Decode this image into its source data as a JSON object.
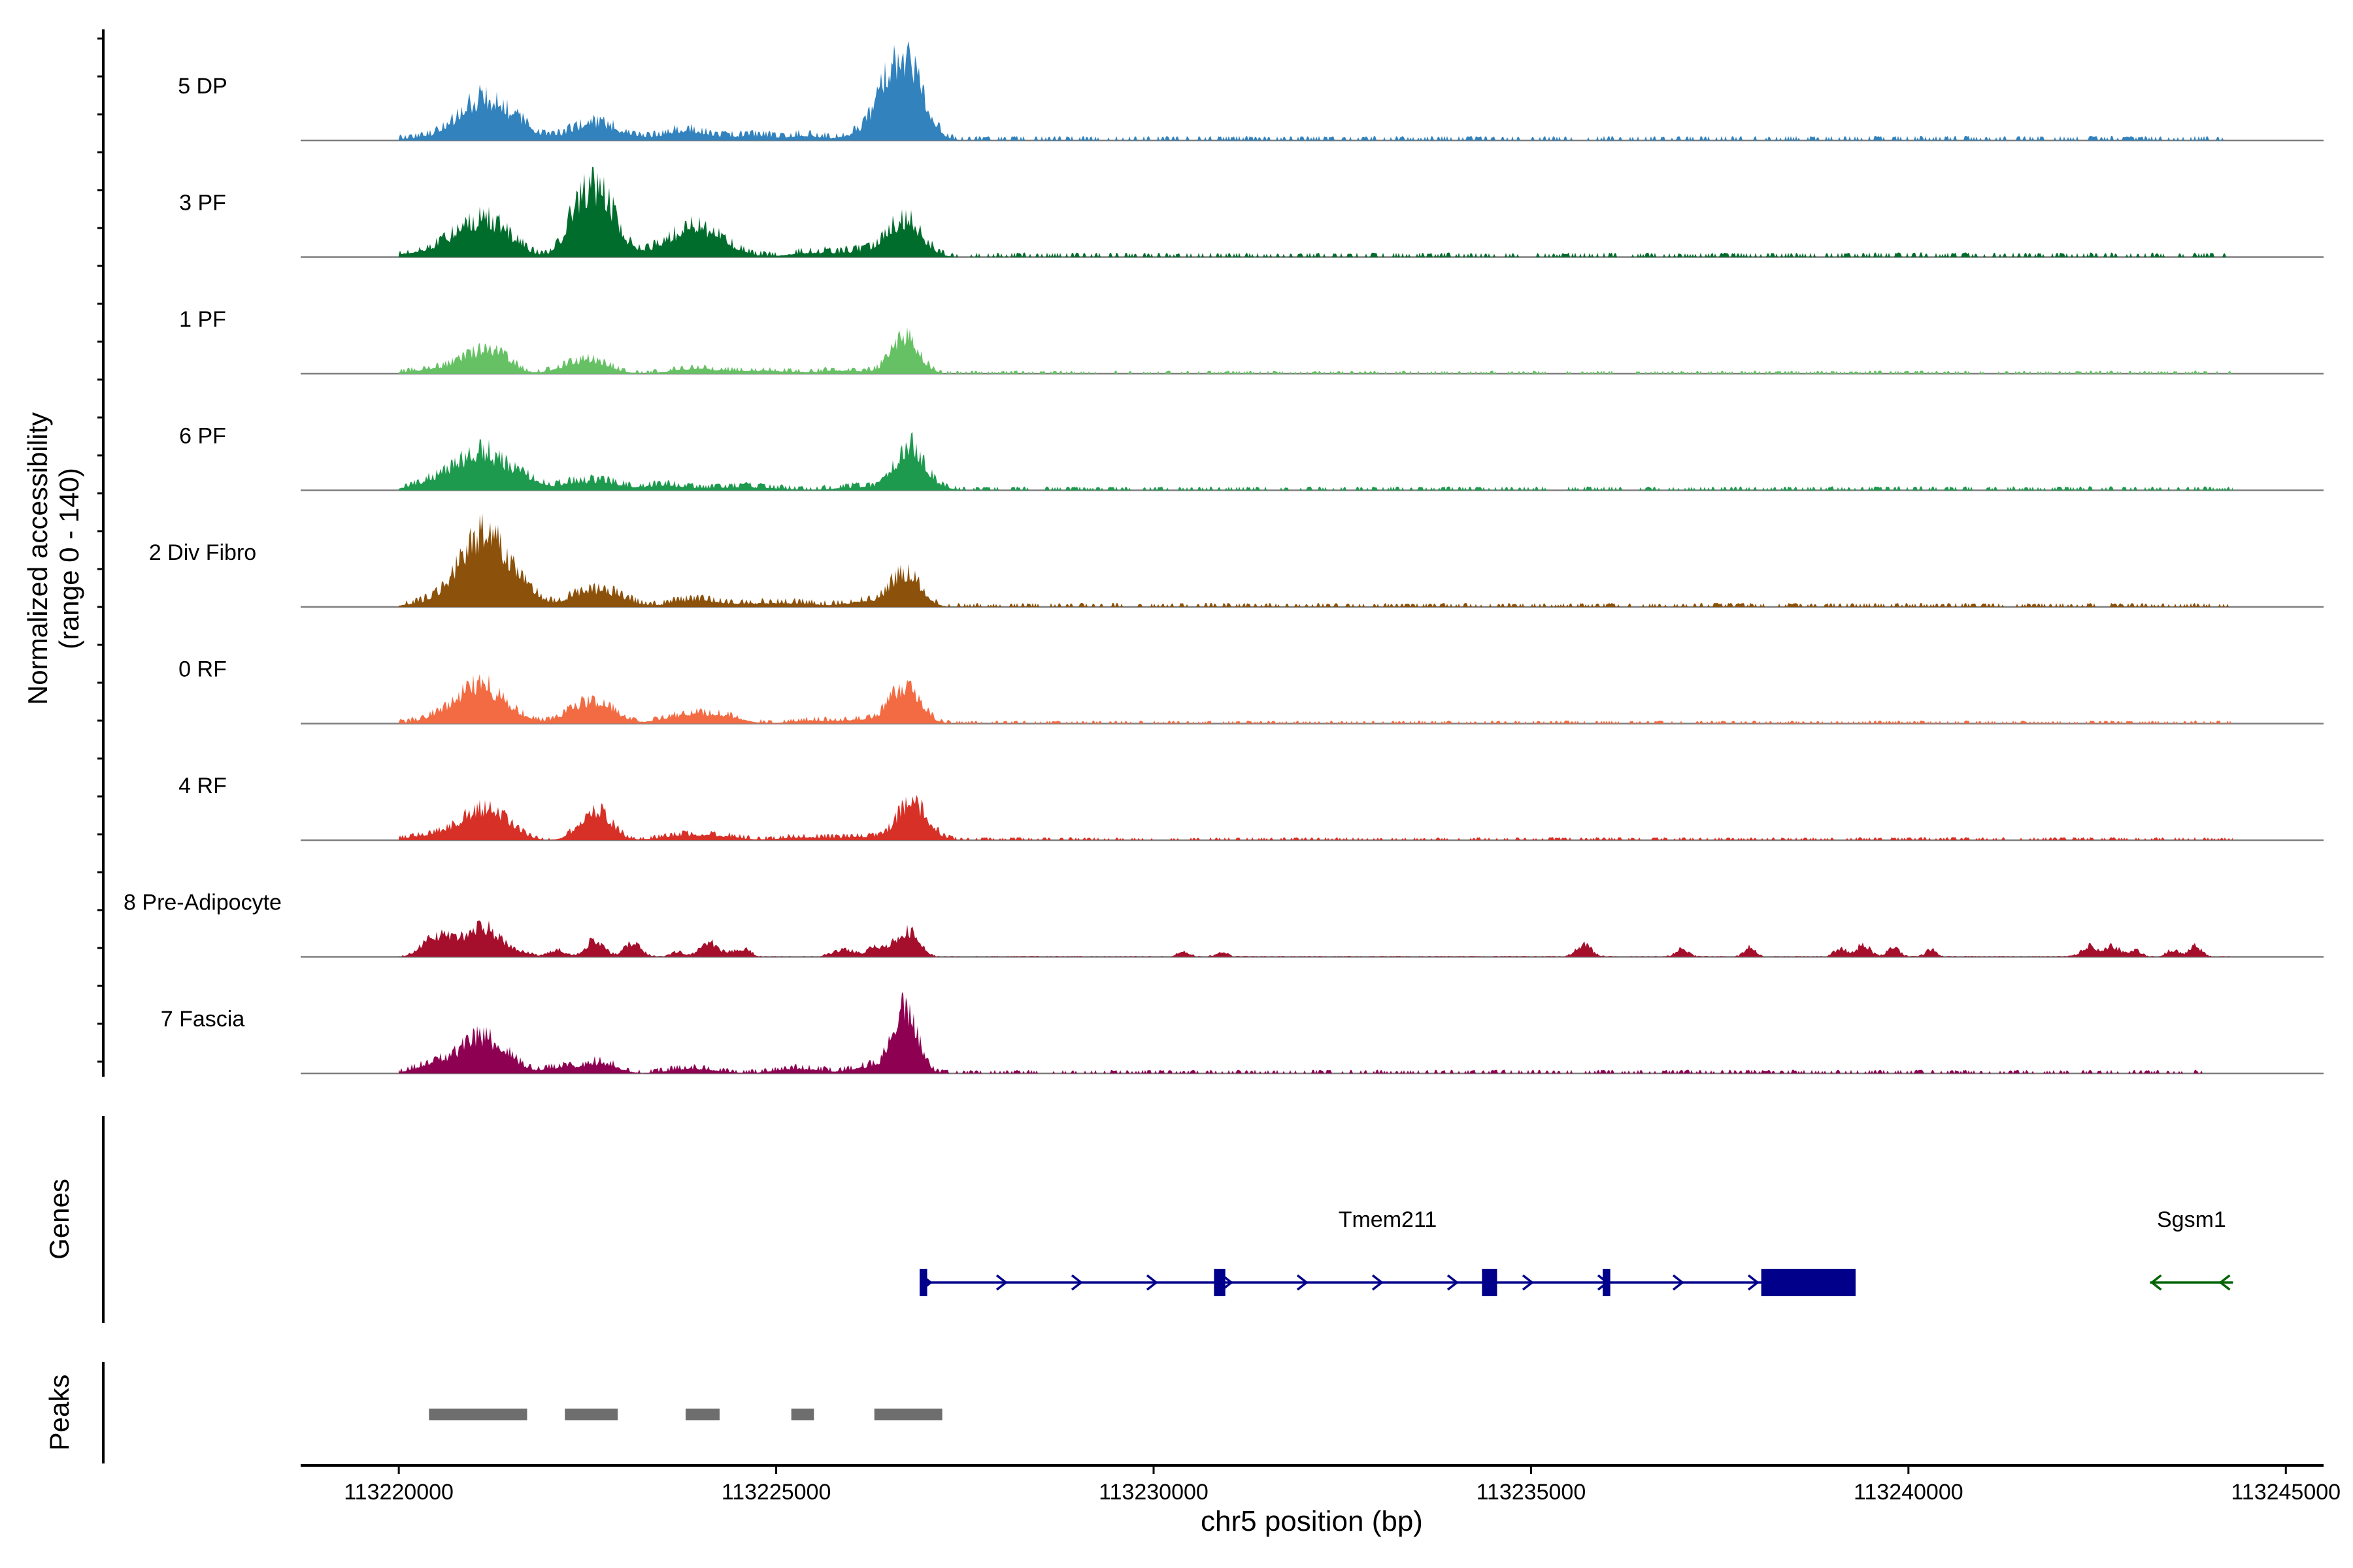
{
  "chart_data": {
    "type": "area",
    "title": "",
    "ylabel_line1": "Normalized accessibility",
    "ylabel_line2": "(range 0 - 140)",
    "xlabel": "chr5 position (bp)",
    "xlim": [
      113218700,
      113245500
    ],
    "x_ticks": [
      113220000,
      113225000,
      113230000,
      113235000,
      113240000,
      113245000
    ],
    "x_tick_labels": [
      "113220000",
      "113225000",
      "113230000",
      "113235000",
      "113240000",
      "113245000"
    ],
    "ylim": [
      0,
      140
    ],
    "track_panels": [
      "Genes",
      "Peaks"
    ],
    "series": [
      {
        "name": "5 DP",
        "color": "#3182BD",
        "noise": 1.5,
        "extent": [
          113220000,
          113244200
        ],
        "peaks": [
          [
            113220500,
            2,
            420
          ],
          [
            113220900,
            8,
            260
          ],
          [
            113221100,
            13,
            220
          ],
          [
            113221400,
            10,
            240
          ],
          [
            113221650,
            4,
            200
          ],
          [
            113222600,
            10,
            320
          ],
          [
            113223800,
            6,
            280
          ],
          [
            113224700,
            3,
            300
          ],
          [
            113225400,
            3,
            200
          ],
          [
            113226100,
            4,
            200
          ],
          [
            113226700,
            50,
            230
          ],
          [
            113226400,
            8,
            150
          ]
        ]
      },
      {
        "name": "3 PF",
        "color": "#006D2C",
        "noise": 1.5,
        "extent": [
          113220000,
          113244300
        ],
        "peaks": [
          [
            113220500,
            3,
            500
          ],
          [
            113220800,
            8,
            250
          ],
          [
            113221100,
            12,
            220
          ],
          [
            113221400,
            10,
            240
          ],
          [
            113222400,
            26,
            180
          ],
          [
            113222700,
            30,
            190
          ],
          [
            113223400,
            4,
            500
          ],
          [
            113223900,
            14,
            260
          ],
          [
            113224300,
            5,
            250
          ],
          [
            113225500,
            3,
            300
          ],
          [
            113226100,
            3,
            200
          ],
          [
            113226700,
            22,
            220
          ]
        ]
      },
      {
        "name": "1 PF",
        "color": "#66C164",
        "noise": 1.0,
        "extent": [
          113220000,
          113244300
        ],
        "peaks": [
          [
            113220600,
            3,
            400
          ],
          [
            113221000,
            7,
            240
          ],
          [
            113221300,
            10,
            200
          ],
          [
            113222300,
            4,
            250
          ],
          [
            113222600,
            6,
            230
          ],
          [
            113223900,
            3,
            300
          ],
          [
            113224800,
            2,
            400
          ],
          [
            113225900,
            2,
            300
          ],
          [
            113226700,
            22,
            180
          ]
        ]
      },
      {
        "name": "6 PF",
        "color": "#1E9A4E",
        "noise": 1.3,
        "extent": [
          113220000,
          113244300
        ],
        "peaks": [
          [
            113220400,
            4,
            250
          ],
          [
            113220800,
            10,
            240
          ],
          [
            113221100,
            14,
            200
          ],
          [
            113221400,
            9,
            250
          ],
          [
            113221700,
            4,
            200
          ],
          [
            113222300,
            4,
            200
          ],
          [
            113222700,
            5,
            220
          ],
          [
            113223500,
            3,
            300
          ],
          [
            113224600,
            2,
            400
          ],
          [
            113226100,
            2,
            300
          ],
          [
            113226750,
            24,
            170
          ],
          [
            113227000,
            4,
            200
          ]
        ]
      },
      {
        "name": "2 Div Fibro",
        "color": "#8C510A",
        "noise": 1.3,
        "extent": [
          113220000,
          113244300
        ],
        "peaks": [
          [
            113220600,
            4,
            350
          ],
          [
            113220900,
            14,
            250
          ],
          [
            113221150,
            28,
            230
          ],
          [
            113221450,
            12,
            250
          ],
          [
            113221700,
            4,
            200
          ],
          [
            113222500,
            9,
            250
          ],
          [
            113222900,
            5,
            200
          ],
          [
            113223900,
            4,
            300
          ],
          [
            113224700,
            2,
            300
          ],
          [
            113225300,
            2,
            300
          ],
          [
            113226100,
            3,
            200
          ],
          [
            113226700,
            20,
            200
          ]
        ]
      },
      {
        "name": "0 RF",
        "color": "#F26B43",
        "noise": 1.0,
        "extent": [
          113220000,
          113244300
        ],
        "peaks": [
          [
            113220600,
            4,
            300
          ],
          [
            113220900,
            10,
            240
          ],
          [
            113221150,
            14,
            200
          ],
          [
            113221500,
            6,
            230
          ],
          [
            113222400,
            8,
            220
          ],
          [
            113222700,
            9,
            220
          ],
          [
            113223800,
            5,
            300
          ],
          [
            113224300,
            4,
            250
          ],
          [
            113225500,
            2,
            300
          ],
          [
            113226100,
            2,
            200
          ],
          [
            113226700,
            22,
            200
          ]
        ]
      },
      {
        "name": "4 RF",
        "color": "#D73027",
        "noise": 1.0,
        "extent": [
          113220000,
          113244300
        ],
        "peaks": [
          [
            113220500,
            3,
            350
          ],
          [
            113220900,
            7,
            250
          ],
          [
            113221100,
            10,
            180
          ],
          [
            113221400,
            10,
            200
          ],
          [
            113222600,
            18,
            200
          ],
          [
            113223800,
            3,
            300
          ],
          [
            113224300,
            2,
            250
          ],
          [
            113225400,
            2,
            300
          ],
          [
            113226100,
            2,
            200
          ],
          [
            113226800,
            22,
            200
          ]
        ]
      },
      {
        "name": "8 Pre-Adipocyte",
        "color": "#A50F2B",
        "noise": 0.3,
        "extent": [
          113220000,
          113244300
        ],
        "peaks": [
          [
            113220400,
            6,
            150
          ],
          [
            113220600,
            9,
            160
          ],
          [
            113220900,
            7,
            160
          ],
          [
            113221100,
            12,
            150
          ],
          [
            113221300,
            7,
            140
          ],
          [
            113221600,
            3,
            150
          ],
          [
            113222100,
            4,
            100
          ],
          [
            113222600,
            10,
            120
          ],
          [
            113223100,
            8,
            110
          ],
          [
            113223700,
            3,
            80
          ],
          [
            113224100,
            9,
            110
          ],
          [
            113224400,
            3,
            80
          ],
          [
            113224600,
            4,
            80
          ],
          [
            113225900,
            4,
            150
          ],
          [
            113226300,
            5,
            100
          ],
          [
            113226600,
            8,
            120
          ],
          [
            113226800,
            12,
            120
          ],
          [
            113230400,
            3,
            80
          ],
          [
            113230900,
            3,
            70
          ],
          [
            113235700,
            7,
            100
          ],
          [
            113237000,
            5,
            80
          ],
          [
            113237900,
            6,
            70
          ],
          [
            113239100,
            5,
            80
          ],
          [
            113239400,
            7,
            90
          ],
          [
            113239800,
            5,
            80
          ],
          [
            113240300,
            4,
            70
          ],
          [
            113242400,
            6,
            100
          ],
          [
            113242700,
            6,
            100
          ],
          [
            113243000,
            4,
            80
          ],
          [
            113243500,
            4,
            80
          ],
          [
            113243800,
            6,
            80
          ]
        ]
      },
      {
        "name": "7 Fascia",
        "color": "#8E0152",
        "noise": 1.2,
        "extent": [
          113220000,
          113243900
        ],
        "peaks": [
          [
            113220500,
            6,
            250
          ],
          [
            113220900,
            8,
            200
          ],
          [
            113221100,
            13,
            180
          ],
          [
            113221400,
            10,
            200
          ],
          [
            113222200,
            4,
            250
          ],
          [
            113222700,
            6,
            200
          ],
          [
            113223900,
            3,
            300
          ],
          [
            113225300,
            3,
            300
          ],
          [
            113226200,
            4,
            200
          ],
          [
            113226700,
            40,
            160
          ]
        ]
      }
    ]
  },
  "genes": [
    {
      "name": "Tmem211",
      "start": 113226900,
      "end": 113239300,
      "strand": "+",
      "color": "#00008B",
      "exons": [
        [
          113226900,
          113227000
        ],
        [
          113230800,
          113230950
        ],
        [
          113234350,
          113234550
        ],
        [
          113235950,
          113236050
        ],
        [
          113238050,
          113239300
        ]
      ]
    },
    {
      "name": "Sgsm1",
      "start": 113243200,
      "end": 113244300,
      "strand": "-",
      "color": "#006400",
      "exons": []
    }
  ],
  "peaks": [
    [
      113220400,
      113221700
    ],
    [
      113222200,
      113222900
    ],
    [
      113223800,
      113224250
    ],
    [
      113225200,
      113225500
    ],
    [
      113226300,
      113227200
    ]
  ],
  "peak_color": "#6E6E6E"
}
